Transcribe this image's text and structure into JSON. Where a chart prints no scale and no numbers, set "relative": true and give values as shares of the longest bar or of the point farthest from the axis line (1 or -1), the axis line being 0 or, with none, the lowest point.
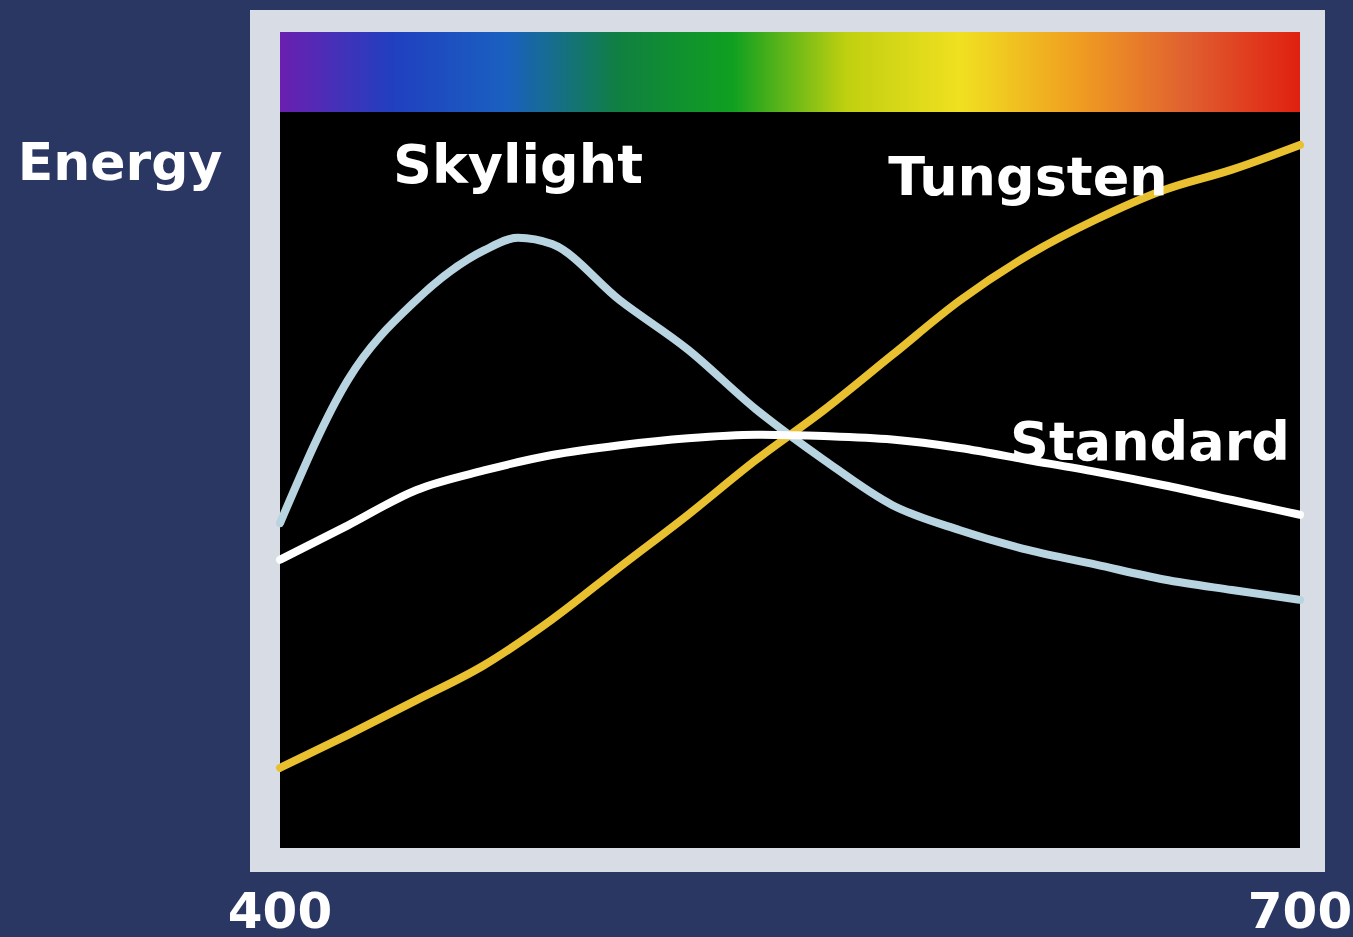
{
  "chart_data": {
    "type": "line",
    "relative": true,
    "ylabel": "Energy",
    "xlim": [
      400,
      700
    ],
    "xticks": [
      400,
      700
    ],
    "x": [
      400,
      420,
      440,
      460,
      480,
      500,
      520,
      540,
      560,
      580,
      600,
      620,
      640,
      660,
      680,
      700
    ],
    "series": [
      {
        "name": "Skylight",
        "color": "#b8d4e0",
        "x": [
          400,
          420,
          440,
          460,
          470,
          480,
          500,
          520,
          540,
          560,
          580,
          600,
          620,
          640,
          660,
          680,
          700
        ],
        "values": [
          0.462,
          0.666,
          0.779,
          0.85,
          0.868,
          0.859,
          0.779,
          0.709,
          0.624,
          0.552,
          0.488,
          0.452,
          0.424,
          0.403,
          0.382,
          0.367,
          0.353
        ]
      },
      {
        "name": "Tungsten",
        "color": "#e8c030",
        "values": [
          0.114,
          0.161,
          0.21,
          0.26,
          0.325,
          0.4,
          0.474,
          0.552,
          0.623,
          0.701,
          0.779,
          0.843,
          0.894,
          0.936,
          0.965,
          1
        ]
      },
      {
        "name": "Standard",
        "color": "#ffffff",
        "values": [
          0.41,
          0.459,
          0.509,
          0.537,
          0.559,
          0.573,
          0.583,
          0.588,
          0.586,
          0.581,
          0.569,
          0.552,
          0.535,
          0.516,
          0.495,
          0.474
        ]
      }
    ]
  }
}
